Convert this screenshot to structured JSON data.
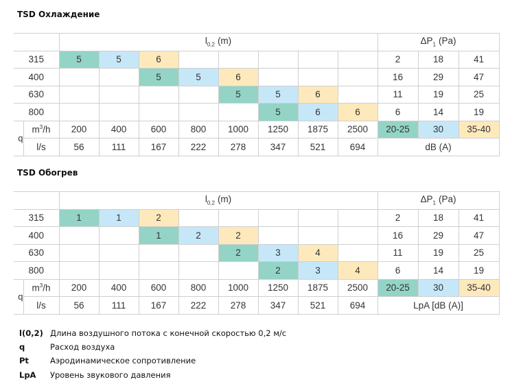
{
  "level_colors": [
    "#93d4c6",
    "#c6e7f8",
    "#fde9bb"
  ],
  "tables": [
    {
      "title": "TSD Охлаждение",
      "throw_label": {
        "main": "l",
        "sub": "0,2",
        "rest": "(m)"
      },
      "pressure_label": {
        "main": "ΔP",
        "sub": "1",
        "rest": "(Pa)"
      },
      "rows": [
        {
          "size": 315,
          "throw": [
            5,
            5,
            6,
            null,
            null,
            null,
            null,
            null
          ],
          "pressure": [
            2,
            18,
            41
          ]
        },
        {
          "size": 400,
          "throw": [
            null,
            null,
            5,
            5,
            6,
            null,
            null,
            null
          ],
          "pressure": [
            16,
            29,
            47
          ]
        },
        {
          "size": 630,
          "throw": [
            null,
            null,
            null,
            null,
            5,
            5,
            6,
            null
          ],
          "pressure": [
            11,
            19,
            25
          ]
        },
        {
          "size": 800,
          "throw": [
            null,
            null,
            null,
            null,
            null,
            5,
            6,
            6
          ],
          "pressure": [
            6,
            14,
            19
          ]
        }
      ],
      "flow_symbol": "q",
      "m3h_label": {
        "main": "m",
        "sup": "3",
        "rest": "/h"
      },
      "ls_label": "l/s",
      "flow_m3h": [
        200,
        400,
        600,
        800,
        1000,
        1250,
        1875,
        2500
      ],
      "flow_ls": [
        56,
        111,
        167,
        222,
        278,
        347,
        521,
        694
      ],
      "levels": [
        "20-25",
        "30",
        "35-40"
      ],
      "sound_label": "dB (A)"
    },
    {
      "title": "TSD Обогрев",
      "throw_label": {
        "main": "l",
        "sub": "0,2",
        "rest": "(m)"
      },
      "pressure_label": {
        "main": "ΔP",
        "sub": "1",
        "rest": "(Pa)"
      },
      "rows": [
        {
          "size": 315,
          "throw": [
            1,
            1,
            2,
            null,
            null,
            null,
            null,
            null
          ],
          "pressure": [
            2,
            18,
            41
          ]
        },
        {
          "size": 400,
          "throw": [
            null,
            null,
            1,
            2,
            2,
            null,
            null,
            null
          ],
          "pressure": [
            16,
            29,
            47
          ]
        },
        {
          "size": 630,
          "throw": [
            null,
            null,
            null,
            null,
            2,
            3,
            4,
            null
          ],
          "pressure": [
            11,
            19,
            25
          ]
        },
        {
          "size": 800,
          "throw": [
            null,
            null,
            null,
            null,
            null,
            2,
            3,
            4
          ],
          "pressure": [
            6,
            14,
            19
          ]
        }
      ],
      "flow_symbol": "q",
      "m3h_label": {
        "main": "m",
        "sup": "3",
        "rest": "/h"
      },
      "ls_label": "l/s",
      "flow_m3h": [
        200,
        400,
        600,
        800,
        1000,
        1250,
        1875,
        2500
      ],
      "flow_ls": [
        56,
        111,
        167,
        222,
        278,
        347,
        521,
        694
      ],
      "levels": [
        "20-25",
        "30",
        "35-40"
      ],
      "sound_label": "LpA [dB (A)]"
    }
  ],
  "legend": [
    {
      "term": "l(0,2)",
      "text": "Длина воздушного потока с конечной скоростью 0,2 м/с"
    },
    {
      "term": "q",
      "text": "Расход воздуха"
    },
    {
      "term": "Pt",
      "text": "Аэродинамическое сопротивление"
    },
    {
      "term": "LpA",
      "text": "Уровень звукового давления"
    }
  ]
}
